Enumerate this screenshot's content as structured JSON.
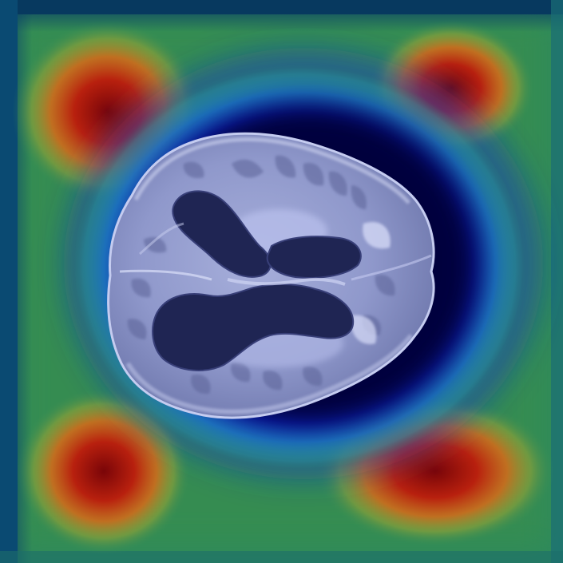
{
  "image": {
    "subject": "brain-mri-axial-slice-heatmap-overlay",
    "colors": {
      "frame_edge": "#0a3b63",
      "field_green": "#2f8a5a",
      "hot_red": "#8a0d08",
      "hot_orange": "#d2661a",
      "cool_blue": "#0a1a9a",
      "core_navy": "#04003d",
      "brain_tissue": "#8e97cc",
      "brain_light": "#c9cff0",
      "ventricle": "#1e2452"
    }
  }
}
